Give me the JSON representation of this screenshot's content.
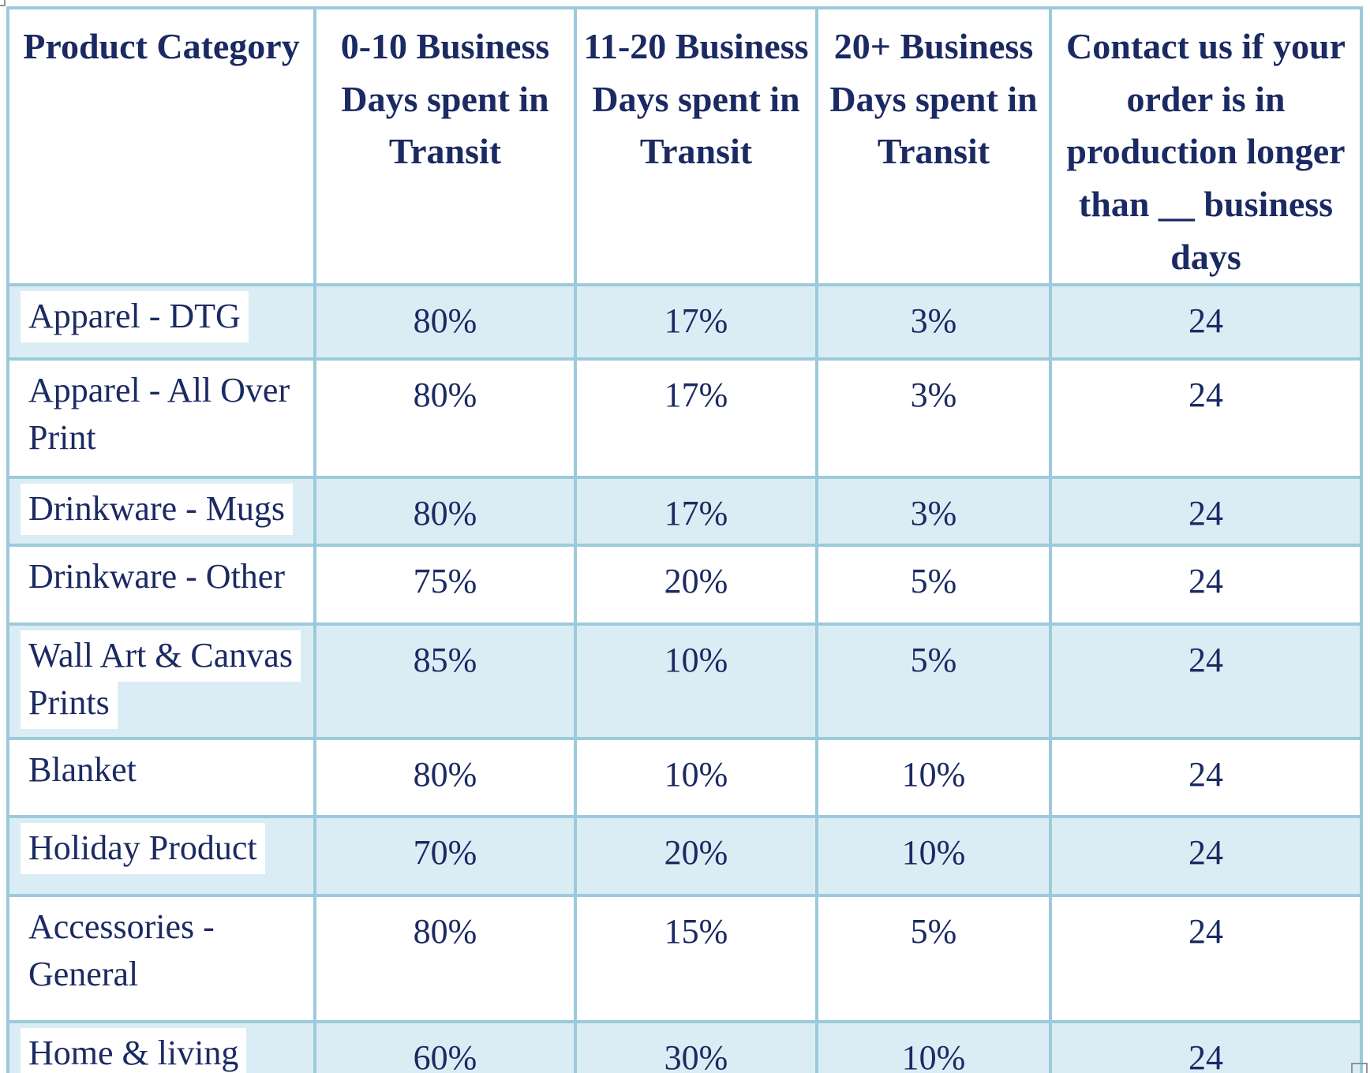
{
  "colors": {
    "border": "#9ccadb",
    "row_alt": "#daedf4",
    "text": "#1b2a63",
    "highlight": "#ffffff",
    "page_bg": "#ffffff"
  },
  "table": {
    "headers": [
      "Product Category",
      "0-10 Business Days spent in Transit",
      "11-20 Business Days spent in Transit",
      "20+ Business Days spent in Transit",
      "Contact us if your order is in production longer than __ business days"
    ],
    "rows": [
      {
        "category": "Apparel - DTG",
        "pct_0_10": "80%",
        "pct_11_20": "17%",
        "pct_20_plus": "3%",
        "contact_days": "24",
        "highlighted": true
      },
      {
        "category": "Apparel - All Over Print",
        "pct_0_10": "80%",
        "pct_11_20": "17%",
        "pct_20_plus": "3%",
        "contact_days": "24",
        "highlighted": false
      },
      {
        "category": "Drinkware - Mugs",
        "pct_0_10": "80%",
        "pct_11_20": "17%",
        "pct_20_plus": "3%",
        "contact_days": "24",
        "highlighted": true
      },
      {
        "category": "Drinkware - Other",
        "pct_0_10": "75%",
        "pct_11_20": "20%",
        "pct_20_plus": "5%",
        "contact_days": "24",
        "highlighted": false
      },
      {
        "category": "Wall Art & Canvas Prints",
        "pct_0_10": "85%",
        "pct_11_20": "10%",
        "pct_20_plus": "5%",
        "contact_days": "24",
        "highlighted": true
      },
      {
        "category": "Blanket",
        "pct_0_10": "80%",
        "pct_11_20": "10%",
        "pct_20_plus": "10%",
        "contact_days": "24",
        "highlighted": false
      },
      {
        "category": "Holiday Product",
        "pct_0_10": "70%",
        "pct_11_20": "20%",
        "pct_20_plus": "10%",
        "contact_days": "24",
        "highlighted": true
      },
      {
        "category": "Accessories - General",
        "pct_0_10": "80%",
        "pct_11_20": "15%",
        "pct_20_plus": "5%",
        "contact_days": "24",
        "highlighted": false
      },
      {
        "category": "Home & living",
        "pct_0_10": "60%",
        "pct_11_20": "30%",
        "pct_20_plus": "10%",
        "contact_days": "24",
        "highlighted": true
      }
    ]
  }
}
